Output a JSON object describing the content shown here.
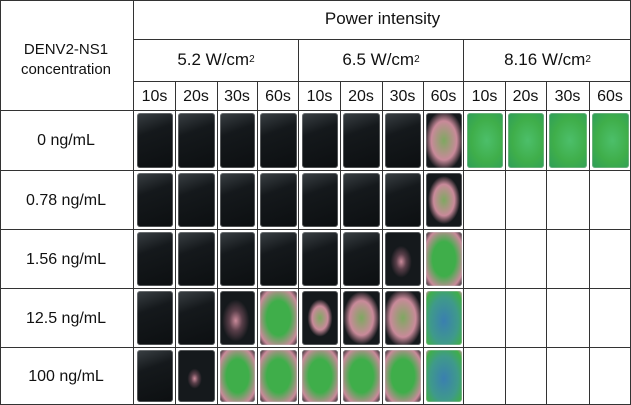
{
  "header": {
    "row_label": "DENV2-NS1 concentration",
    "group_label": "Power intensity",
    "power_levels": [
      {
        "value": "5.2 W/cm",
        "exp": "2"
      },
      {
        "value": "6.5 W/cm",
        "exp": "2"
      },
      {
        "value": "8.16 W/cm",
        "exp": "2"
      }
    ],
    "times": [
      "10s",
      "20s",
      "30s",
      "60s"
    ]
  },
  "rows": [
    {
      "concentration": "0 ng/mL",
      "signal": [
        [
          0,
          0,
          0,
          0
        ],
        [
          0,
          0,
          0,
          0.55
        ],
        [
          1,
          1,
          1,
          1
        ]
      ]
    },
    {
      "concentration": "0.78 ng/mL",
      "signal": [
        [
          0,
          0,
          0,
          0
        ],
        [
          0,
          0,
          0,
          0.45
        ],
        null
      ]
    },
    {
      "concentration": "1.56 ng/mL",
      "signal": [
        [
          0,
          0,
          0,
          0
        ],
        [
          0,
          0,
          0.15,
          0.8
        ],
        null
      ]
    },
    {
      "concentration": "12.5 ng/mL",
      "signal": [
        [
          0,
          0,
          0.2,
          0.85
        ],
        [
          0.35,
          0.5,
          0.55,
          1
        ],
        null
      ]
    },
    {
      "concentration": "100 ng/mL",
      "signal": [
        [
          0,
          0.1,
          0.85,
          0.9
        ],
        [
          0.7,
          0.85,
          0.9,
          1
        ],
        null
      ]
    }
  ],
  "colors": {
    "tile_dark": "#15191c",
    "signal_green": "#3fae4a",
    "signal_pink": "#c98a9a",
    "signal_blue": "#3a7fb0"
  }
}
